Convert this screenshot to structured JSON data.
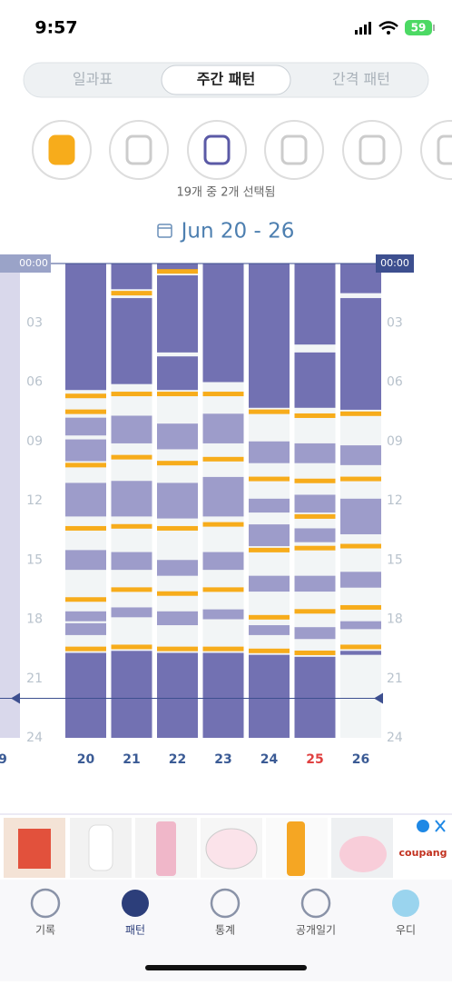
{
  "status": {
    "time": "9:57",
    "battery": "59"
  },
  "tabs": [
    "일과표",
    "주간 패턴",
    "간격 패턴"
  ],
  "selected_tab": 1,
  "selection_text": "19개 중 2개 선택됨",
  "date_range": "Jun 20 - 26",
  "prev_day_label": "9",
  "chart": {
    "ylim": [
      0,
      24
    ],
    "yticks": [
      {
        "value": 3,
        "label": "03"
      },
      {
        "value": 6,
        "label": "06"
      },
      {
        "value": 9,
        "label": "09"
      },
      {
        "value": 12,
        "label": "12"
      },
      {
        "value": 15,
        "label": "15"
      },
      {
        "value": 18,
        "label": "18"
      },
      {
        "value": 21,
        "label": "21"
      },
      {
        "value": 24,
        "label": "24"
      }
    ],
    "start_marker": {
      "value": 0,
      "label": "00:00"
    },
    "now": 22.0,
    "night_color": "#7271b2",
    "nap_color": "#9d9cca",
    "feed_color": "#f7ac1b",
    "empty_color": "#f2f5f6",
    "today_color": "#e04040",
    "label_color": "#3b5b95",
    "days": [
      {
        "label": "20",
        "night": [
          [
            0,
            6.4
          ],
          [
            19.7,
            24
          ]
        ],
        "naps": [
          [
            7.8,
            8.7
          ],
          [
            8.9,
            10.0
          ],
          [
            11.1,
            12.8
          ],
          [
            14.5,
            15.5
          ],
          [
            17.6,
            18.1
          ],
          [
            18.2,
            18.8
          ]
        ],
        "feeds": [
          6.7,
          7.5,
          10.2,
          13.4,
          17.0,
          19.5
        ]
      },
      {
        "label": "21",
        "night": [
          [
            0,
            1.3
          ],
          [
            1.75,
            6.1
          ],
          [
            19.6,
            24
          ]
        ],
        "naps": [
          [
            7.7,
            9.1
          ],
          [
            11.0,
            12.8
          ],
          [
            14.6,
            15.5
          ],
          [
            17.4,
            17.9
          ]
        ],
        "feeds": [
          1.5,
          6.6,
          9.8,
          13.3,
          16.5,
          19.4
        ]
      },
      {
        "label": "22",
        "night": [
          [
            0,
            0.3
          ],
          [
            0.6,
            4.5
          ],
          [
            4.7,
            6.4
          ],
          [
            19.7,
            24
          ]
        ],
        "naps": [
          [
            8.1,
            9.4
          ],
          [
            11.1,
            12.9
          ],
          [
            15.0,
            15.8
          ],
          [
            17.6,
            18.3
          ]
        ],
        "feeds": [
          0.4,
          6.6,
          10.1,
          13.4,
          16.7,
          19.5
        ]
      },
      {
        "label": "23",
        "night": [
          [
            0,
            6.0
          ],
          [
            19.7,
            24
          ]
        ],
        "naps": [
          [
            7.6,
            9.1
          ],
          [
            10.8,
            12.8
          ],
          [
            14.6,
            15.5
          ],
          [
            17.5,
            18.0
          ]
        ],
        "feeds": [
          6.6,
          9.9,
          13.2,
          16.5,
          19.5
        ]
      },
      {
        "label": "24",
        "night": [
          [
            0,
            7.3
          ],
          [
            19.8,
            24
          ]
        ],
        "naps": [
          [
            9.0,
            10.1
          ],
          [
            11.9,
            12.6
          ],
          [
            13.2,
            14.3
          ],
          [
            15.8,
            16.6
          ],
          [
            18.3,
            18.8
          ]
        ],
        "feeds": [
          7.5,
          10.9,
          14.5,
          17.9,
          19.6
        ]
      },
      {
        "label": "25",
        "night": [
          [
            0,
            4.1
          ],
          [
            4.5,
            7.3
          ],
          [
            19.9,
            24
          ]
        ],
        "naps": [
          [
            9.1,
            10.1
          ],
          [
            11.7,
            12.6
          ],
          [
            13.4,
            14.1
          ],
          [
            15.8,
            16.6
          ],
          [
            18.4,
            19.0
          ]
        ],
        "feeds": [
          7.7,
          11.0,
          12.8,
          14.4,
          17.6,
          19.7
        ],
        "today": true
      },
      {
        "label": "26",
        "night": [
          [
            0,
            1.5
          ],
          [
            1.75,
            7.4
          ],
          [
            19.6,
            19.8
          ]
        ],
        "naps": [
          [
            9.2,
            10.2
          ],
          [
            11.9,
            13.7
          ],
          [
            15.6,
            16.4
          ],
          [
            18.1,
            18.5
          ]
        ],
        "feeds": [
          7.6,
          10.9,
          14.3,
          17.4,
          19.4
        ]
      }
    ]
  },
  "ad": {
    "brand": "coupang"
  },
  "nav": [
    "기록",
    "패턴",
    "통계",
    "공개일기",
    "우디"
  ],
  "selected_nav": 1
}
